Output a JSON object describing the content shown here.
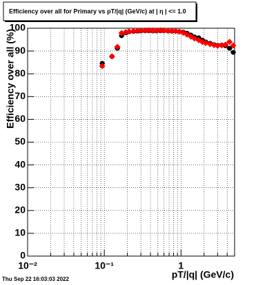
{
  "chart_data": {
    "type": "scatter",
    "title": "Efficiency over all for Primary vs pT/|q| (GeV/c) at |  η | <= 1.0",
    "xlabel": "pT/|q| (GeV/c)",
    "ylabel": "Efficiency over all (%)",
    "footer": "Thu Sep 22 16:03:03 2022",
    "xscale": "log",
    "grid": true,
    "xlim": [
      0.01,
      5
    ],
    "ylim": [
      0,
      100
    ],
    "xticks": [
      {
        "value": 0.01,
        "label": "10⁻²"
      },
      {
        "value": 0.1,
        "label": "10⁻¹"
      },
      1
    ],
    "xminorticks": [
      0.02,
      0.03,
      0.04,
      0.05,
      0.06,
      0.07,
      0.08,
      0.09,
      0.2,
      0.3,
      0.4,
      0.5,
      0.6,
      0.7,
      0.8,
      0.9,
      2,
      3,
      4,
      5
    ],
    "yticks": [
      0,
      10,
      20,
      30,
      40,
      50,
      60,
      70,
      80,
      90,
      100
    ],
    "x": [
      0.094,
      0.126,
      0.148,
      0.168,
      0.19,
      0.21,
      0.24,
      0.27,
      0.3,
      0.34,
      0.38,
      0.43,
      0.48,
      0.54,
      0.6,
      0.68,
      0.76,
      0.85,
      0.95,
      1.07,
      1.2,
      1.35,
      1.5,
      1.7,
      1.9,
      2.1,
      2.4,
      2.7,
      3.0,
      3.4,
      3.8,
      4.3,
      4.8
    ],
    "series": [
      {
        "color": "#000000",
        "marker": "circle",
        "values": [
          84.6,
          87.6,
          91.2,
          96.7,
          98.0,
          98.4,
          98.6,
          98.7,
          98.8,
          98.9,
          98.9,
          98.8,
          98.8,
          98.9,
          98.9,
          98.8,
          98.7,
          98.7,
          98.5,
          98.3,
          97.8,
          97.0,
          96.2,
          95.8,
          94.8,
          94.0,
          93.4,
          92.8,
          92.5,
          92.6,
          92.3,
          91.2,
          89.4
        ]
      },
      {
        "color": "#ff0000",
        "marker": "diamond",
        "values": [
          83.4,
          87.6,
          91.8,
          97.9,
          98.3,
          98.6,
          98.8,
          98.9,
          99.0,
          99.0,
          99.1,
          99.0,
          98.9,
          99.1,
          99.0,
          98.9,
          98.8,
          98.7,
          98.5,
          98.0,
          97.2,
          96.3,
          95.5,
          94.8,
          94.0,
          93.5,
          93.0,
          92.6,
          92.3,
          92.5,
          92.8,
          94.0,
          92.4
        ]
      }
    ]
  }
}
